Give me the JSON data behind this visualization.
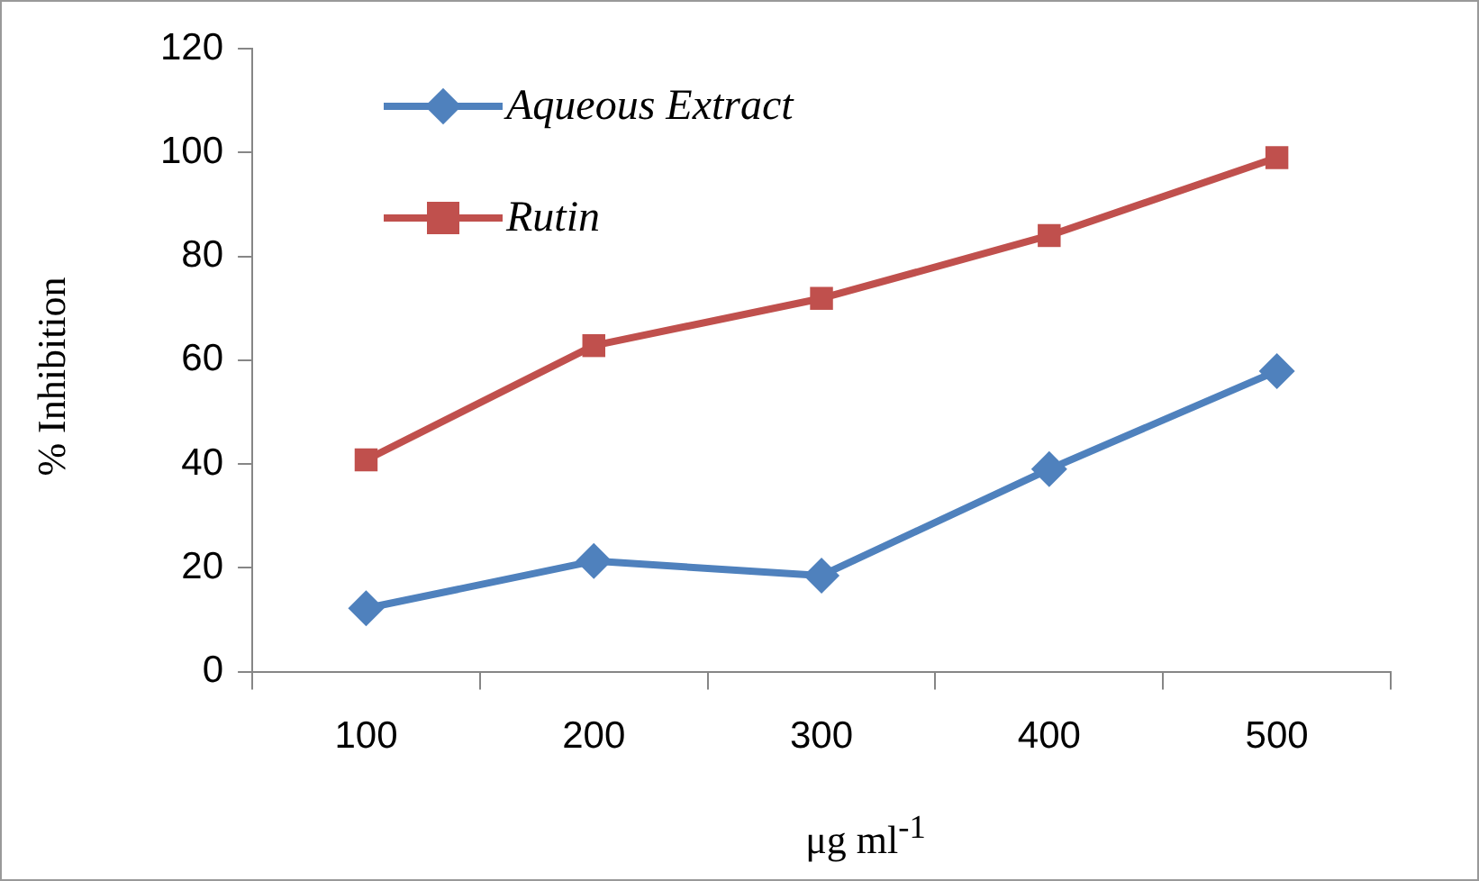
{
  "chart_data": {
    "type": "line",
    "xlabel": "μg ml$^{-1}$",
    "ylabel": "% Inhibition",
    "categories": [
      "100",
      "200",
      "300",
      "400",
      "500"
    ],
    "series": [
      {
        "name": "Aqueous Extract",
        "color": "#4f81bd",
        "values": [
          12.2,
          21.3,
          18.5,
          39,
          57.9
        ],
        "marker": "diamond"
      },
      {
        "name": "Rutin",
        "color": "#c0504d",
        "values": [
          40.8,
          62.8,
          71.9,
          84,
          99
        ],
        "marker": "square"
      }
    ],
    "ylim": [
      0,
      120
    ],
    "yticks": [
      0,
      20,
      40,
      60,
      80,
      100,
      120
    ],
    "grid": false,
    "legend": "top left",
    "line_style": "solid"
  }
}
